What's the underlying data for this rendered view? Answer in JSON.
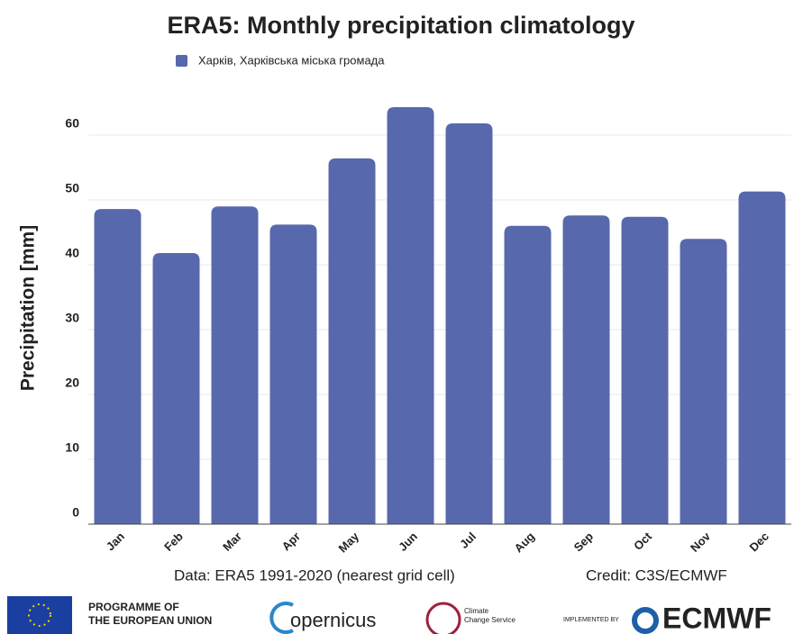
{
  "chart_data": {
    "type": "bar",
    "title": "ERA5: Monthly precipitation climatology",
    "ylabel": "Precipitation [mm]",
    "categories": [
      "Jan",
      "Feb",
      "Mar",
      "Apr",
      "May",
      "Jun",
      "Jul",
      "Aug",
      "Sep",
      "Oct",
      "Nov",
      "Dec"
    ],
    "series": [
      {
        "name": "Харків, Харківська міська громада",
        "color": "#5768ac",
        "values": [
          48.6,
          41.8,
          49.0,
          46.2,
          56.4,
          64.3,
          61.8,
          46.0,
          47.6,
          47.4,
          44.0,
          51.3
        ]
      }
    ],
    "ylim": [
      0,
      65
    ],
    "yticks": [
      0,
      10,
      20,
      30,
      40,
      50,
      60
    ],
    "grid": true,
    "legend": "top"
  },
  "footer": {
    "source": "Data: ERA5 1991-2020 (nearest grid cell)",
    "credit": "Credit: C3S/ECMWF",
    "logos": {
      "eu_line1": "PROGRAMME OF",
      "eu_line2": "THE EUROPEAN UNION",
      "copernicus": "opernicus",
      "c3s_line1": "Climate",
      "c3s_line2": "Change Service",
      "implemented": "IMPLEMENTED BY",
      "ecmwf": "ECMWF"
    }
  }
}
